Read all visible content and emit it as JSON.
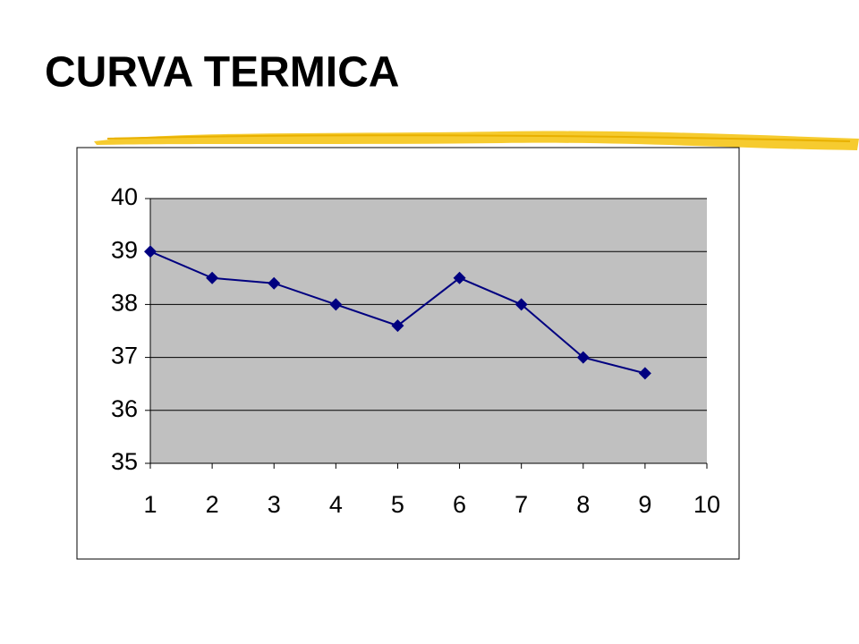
{
  "chart_data": {
    "type": "line",
    "title": "CURVA TERMICA",
    "x": [
      1,
      2,
      3,
      4,
      5,
      6,
      7,
      8,
      9
    ],
    "values": [
      39,
      38.5,
      38.4,
      38,
      37.6,
      38.5,
      38,
      37,
      36.7
    ],
    "color": "#000080",
    "xlim": [
      1,
      10
    ],
    "xticks": [
      1,
      2,
      3,
      4,
      5,
      6,
      7,
      8,
      9,
      10
    ],
    "ylim": [
      35,
      40
    ],
    "yticks": [
      35,
      36,
      37,
      38,
      39,
      40
    ],
    "grid": true
  }
}
